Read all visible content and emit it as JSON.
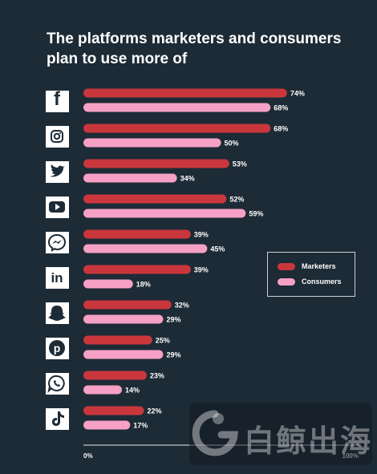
{
  "title": "The platforms marketers and consumers plan to use more of",
  "colors": {
    "background": "#1d2b36",
    "marketers": "#c9373d",
    "consumers": "#f5a0c4",
    "icon_bg": "#ffffff"
  },
  "legend": {
    "marketers_label": "Marketers",
    "consumers_label": "Consumers"
  },
  "watermark": {
    "text": "白鲸出海"
  },
  "chart_data": {
    "type": "bar",
    "orientation": "horizontal",
    "title": "The platforms marketers and consumers plan to use more of",
    "categories": [
      "Facebook",
      "Instagram",
      "Twitter",
      "YouTube",
      "Messenger",
      "LinkedIn",
      "Snapchat",
      "Pinterest",
      "WhatsApp",
      "TikTok"
    ],
    "category_icons": [
      "facebook-icon",
      "instagram-icon",
      "twitter-icon",
      "youtube-icon",
      "messenger-icon",
      "linkedin-icon",
      "snapchat-icon",
      "pinterest-icon",
      "whatsapp-icon",
      "tiktok-icon"
    ],
    "series": [
      {
        "name": "Marketers",
        "values": [
          74,
          68,
          53,
          52,
          39,
          39,
          32,
          25,
          23,
          22
        ]
      },
      {
        "name": "Consumers",
        "values": [
          68,
          50,
          34,
          59,
          45,
          18,
          29,
          29,
          14,
          17
        ]
      }
    ],
    "value_suffix": "%",
    "xlim": [
      0,
      100
    ],
    "x_tick_labels": [
      "0%",
      "100%"
    ],
    "legend_position": "right",
    "grid": false
  }
}
